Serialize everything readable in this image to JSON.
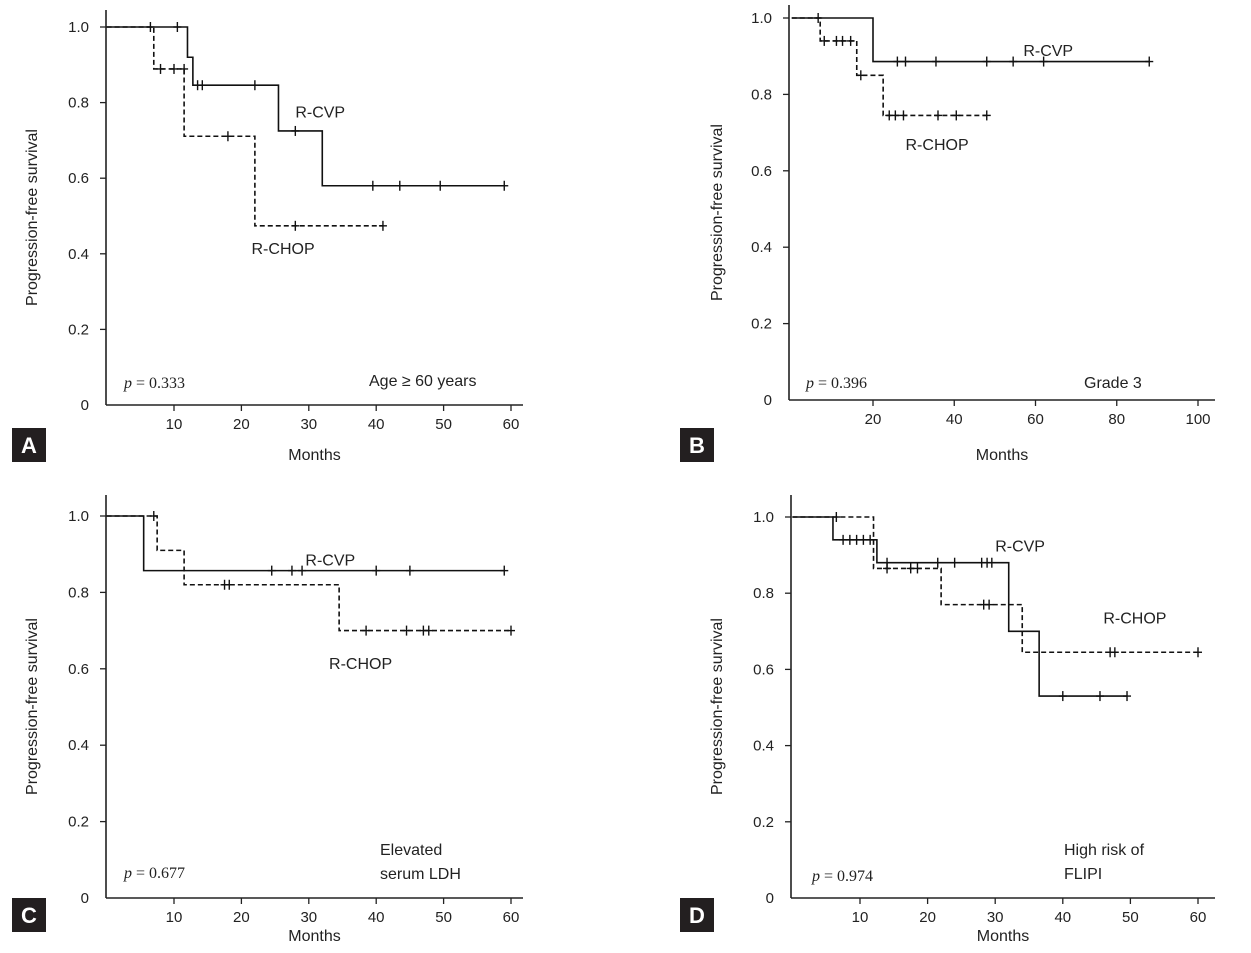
{
  "chart_data": [
    {
      "panel": "A",
      "type": "line",
      "subtype": "kaplan-meier",
      "xlabel": "Months",
      "ylabel": "Progression-free survival",
      "xlim": [
        0,
        62
      ],
      "ylim": [
        0,
        1.05
      ],
      "xticks": [
        10,
        20,
        30,
        40,
        50,
        60
      ],
      "yticks": [
        0,
        0.2,
        0.4,
        0.6,
        0.8,
        1.0
      ],
      "ytick_labels": [
        "0",
        "0.2",
        "0.4",
        "0.6",
        "0.8",
        "1.0"
      ],
      "p_label": "p",
      "p_value": " = 0.333",
      "annotation": [
        "Age ≥ 60 years"
      ],
      "series": [
        {
          "name": "R-CVP",
          "style": "solid",
          "steps": [
            [
              0,
              1.0
            ],
            [
              12,
              0.92
            ],
            [
              12.8,
              0.846
            ],
            [
              25.5,
              0.725
            ],
            [
              32,
              0.58
            ],
            [
              59,
              0.58
            ]
          ],
          "censors": [
            [
              6.5,
              1.0
            ],
            [
              10.5,
              1.0
            ],
            [
              13.5,
              0.846
            ],
            [
              14.2,
              0.846
            ],
            [
              22,
              0.846
            ],
            [
              28,
              0.725
            ],
            [
              39.5,
              0.58
            ],
            [
              43.5,
              0.58
            ],
            [
              49.5,
              0.58
            ],
            [
              59,
              0.58
            ]
          ]
        },
        {
          "name": "R-CHOP",
          "style": "dashed",
          "steps": [
            [
              0,
              1.0
            ],
            [
              7,
              0.889
            ],
            [
              11.5,
              0.711
            ],
            [
              22,
              0.474
            ],
            [
              41,
              0.474
            ]
          ],
          "censors": [
            [
              8,
              0.889
            ],
            [
              10,
              0.889
            ],
            [
              11.5,
              0.889
            ],
            [
              18,
              0.711
            ],
            [
              28,
              0.474
            ],
            [
              41,
              0.474
            ]
          ]
        }
      ],
      "series_label_positions": {
        "R-CVP": [
          28,
          0.76
        ],
        "R-CHOP": [
          21.5,
          0.4
        ]
      }
    },
    {
      "panel": "B",
      "type": "line",
      "subtype": "kaplan-meier",
      "xlabel": "Months",
      "ylabel": "Progression-free survival",
      "xlim": [
        0,
        102
      ],
      "ylim": [
        0,
        1.04
      ],
      "xticks": [
        20,
        40,
        60,
        80,
        100
      ],
      "yticks": [
        0,
        0.2,
        0.4,
        0.6,
        0.8,
        1.0
      ],
      "ytick_labels": [
        "0",
        "0.2",
        "0.4",
        "0.6",
        "0.8",
        "1.0"
      ],
      "p_label": "p",
      "p_value": " = 0.396",
      "annotation": [
        "Grade 3"
      ],
      "series": [
        {
          "name": "R-CVP",
          "style": "solid",
          "steps": [
            [
              0,
              1.0
            ],
            [
              20,
              0.886
            ],
            [
              88,
              0.886
            ]
          ],
          "censors": [
            [
              6.5,
              1.0
            ],
            [
              26,
              0.886
            ],
            [
              28,
              0.886
            ],
            [
              35.5,
              0.886
            ],
            [
              48,
              0.886
            ],
            [
              54.5,
              0.886
            ],
            [
              62,
              0.886
            ],
            [
              88,
              0.886
            ]
          ]
        },
        {
          "name": "R-CHOP",
          "style": "dashed",
          "steps": [
            [
              0,
              1.0
            ],
            [
              7,
              0.94
            ],
            [
              16,
              0.85
            ],
            [
              22.5,
              0.745
            ],
            [
              48,
              0.745
            ]
          ],
          "censors": [
            [
              8,
              0.94
            ],
            [
              11,
              0.94
            ],
            [
              12.5,
              0.94
            ],
            [
              14.5,
              0.94
            ],
            [
              17,
              0.85
            ],
            [
              24,
              0.745
            ],
            [
              25.5,
              0.745
            ],
            [
              27.5,
              0.745
            ],
            [
              36,
              0.745
            ],
            [
              40.5,
              0.745
            ],
            [
              48,
              0.745
            ]
          ]
        }
      ],
      "series_label_positions": {
        "R-CVP": [
          57,
          0.9
        ],
        "R-CHOP": [
          28,
          0.655
        ]
      }
    },
    {
      "panel": "C",
      "type": "line",
      "subtype": "kaplan-meier",
      "xlabel": "Months",
      "ylabel": "Progression-free survival",
      "xlim": [
        0,
        62
      ],
      "ylim": [
        0,
        1.05
      ],
      "xticks": [
        10,
        20,
        30,
        40,
        50,
        60
      ],
      "yticks": [
        0,
        0.2,
        0.4,
        0.6,
        0.8,
        1.0
      ],
      "ytick_labels": [
        "0",
        "0.2",
        "0.4",
        "0.6",
        "0.8",
        "1.0"
      ],
      "p_label": "p",
      "p_value": " = 0.677",
      "annotation": [
        "Elevated",
        "serum LDH"
      ],
      "series": [
        {
          "name": "R-CVP",
          "style": "solid",
          "steps": [
            [
              0,
              1.0
            ],
            [
              5.5,
              0.857
            ],
            [
              59,
              0.857
            ]
          ],
          "censors": [
            [
              24.5,
              0.857
            ],
            [
              27.5,
              0.857
            ],
            [
              29,
              0.857
            ],
            [
              40,
              0.857
            ],
            [
              45,
              0.857
            ],
            [
              59,
              0.857
            ]
          ]
        },
        {
          "name": "R-CHOP",
          "style": "dashed",
          "steps": [
            [
              0,
              1.0
            ],
            [
              7.5,
              0.91
            ],
            [
              11.5,
              0.82
            ],
            [
              34.5,
              0.7
            ],
            [
              60,
              0.7
            ]
          ],
          "censors": [
            [
              7,
              1.0
            ],
            [
              17.5,
              0.82
            ],
            [
              18.2,
              0.82
            ],
            [
              38.5,
              0.7
            ],
            [
              44.5,
              0.7
            ],
            [
              47,
              0.7
            ],
            [
              47.8,
              0.7
            ],
            [
              60,
              0.7
            ]
          ]
        }
      ],
      "series_label_positions": {
        "R-CVP": [
          29.5,
          0.87
        ],
        "R-CHOP": [
          33,
          0.6
        ]
      }
    },
    {
      "panel": "D",
      "type": "line",
      "subtype": "kaplan-meier",
      "xlabel": "Months",
      "ylabel": "Progression-free survival",
      "xlim": [
        0,
        62
      ],
      "ylim": [
        0,
        1.05
      ],
      "xticks": [
        10,
        20,
        30,
        40,
        50,
        60
      ],
      "yticks": [
        0,
        0.2,
        0.4,
        0.6,
        0.8,
        1.0
      ],
      "ytick_labels": [
        "0",
        "0.2",
        "0.4",
        "0.6",
        "0.8",
        "1.0"
      ],
      "p_label": "p",
      "p_value": " = 0.974",
      "annotation": [
        "High risk of",
        "FLIPI"
      ],
      "series": [
        {
          "name": "R-CVP",
          "style": "solid",
          "steps": [
            [
              0,
              1.0
            ],
            [
              6,
              0.94
            ],
            [
              12.5,
              0.88
            ],
            [
              32,
              0.7
            ],
            [
              36.5,
              0.53
            ],
            [
              49.5,
              0.53
            ]
          ],
          "censors": [
            [
              6.5,
              1.0
            ],
            [
              7.5,
              0.94
            ],
            [
              8.5,
              0.94
            ],
            [
              9.5,
              0.94
            ],
            [
              10.5,
              0.94
            ],
            [
              11.5,
              0.94
            ],
            [
              14,
              0.88
            ],
            [
              21.5,
              0.88
            ],
            [
              24,
              0.88
            ],
            [
              28,
              0.88
            ],
            [
              28.8,
              0.88
            ],
            [
              29.5,
              0.88
            ],
            [
              40,
              0.53
            ],
            [
              45.5,
              0.53
            ],
            [
              49.5,
              0.53
            ]
          ]
        },
        {
          "name": "R-CHOP",
          "style": "dashed",
          "steps": [
            [
              0,
              1.0
            ],
            [
              12,
              0.865
            ],
            [
              22,
              0.77
            ],
            [
              34,
              0.645
            ],
            [
              60,
              0.645
            ]
          ],
          "censors": [
            [
              14,
              0.865
            ],
            [
              17.5,
              0.865
            ],
            [
              18.5,
              0.865
            ],
            [
              28.3,
              0.77
            ],
            [
              29.1,
              0.77
            ],
            [
              47,
              0.645
            ],
            [
              47.7,
              0.645
            ],
            [
              60,
              0.645
            ]
          ]
        }
      ],
      "series_label_positions": {
        "R-CVP": [
          30,
          0.91
        ],
        "R-CHOP": [
          46,
          0.72
        ]
      }
    }
  ]
}
